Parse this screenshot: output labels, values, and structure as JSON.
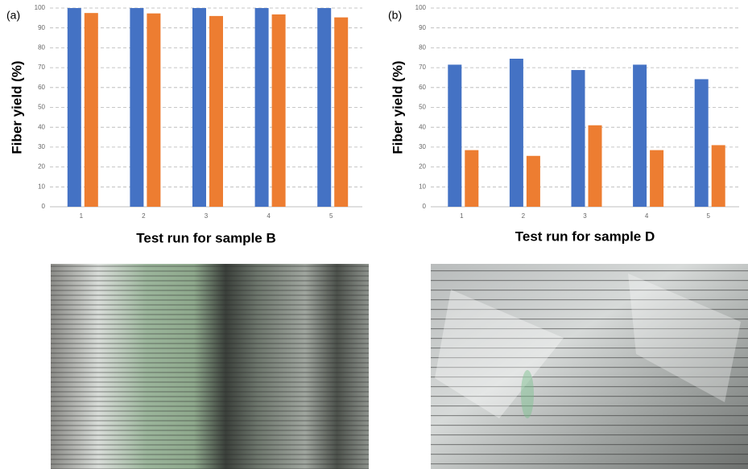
{
  "chart_data": [
    {
      "type": "bar",
      "label": "(a)",
      "y_label": "Fiber yield (%)",
      "x_label": "Test run for sample B",
      "categories": [
        "1",
        "2",
        "3",
        "4",
        "5"
      ],
      "series": [
        {
          "color": "#4472c4",
          "values": [
            100,
            100,
            100,
            100,
            100
          ]
        },
        {
          "color": "#ed7d31",
          "values": [
            97.5,
            97.3,
            96,
            96.8,
            95.3
          ]
        }
      ],
      "ylim": [
        0,
        100
      ],
      "yticks": [
        0,
        10,
        20,
        30,
        40,
        50,
        60,
        70,
        80,
        90,
        100
      ],
      "grid": true
    },
    {
      "type": "bar",
      "label": "(b)",
      "y_label": "Fiber yield (%)",
      "x_label": "Test run for sample D",
      "categories": [
        "1",
        "2",
        "3",
        "4",
        "5"
      ],
      "series": [
        {
          "color": "#4472c4",
          "values": [
            71.5,
            74.5,
            68.8,
            71.5,
            64.2
          ]
        },
        {
          "color": "#ed7d31",
          "values": [
            28.5,
            25.6,
            41,
            28.5,
            31
          ]
        }
      ],
      "ylim": [
        0,
        100
      ],
      "yticks": [
        0,
        10,
        20,
        30,
        40,
        50,
        60,
        70,
        80,
        90,
        100
      ],
      "grid": true
    }
  ]
}
